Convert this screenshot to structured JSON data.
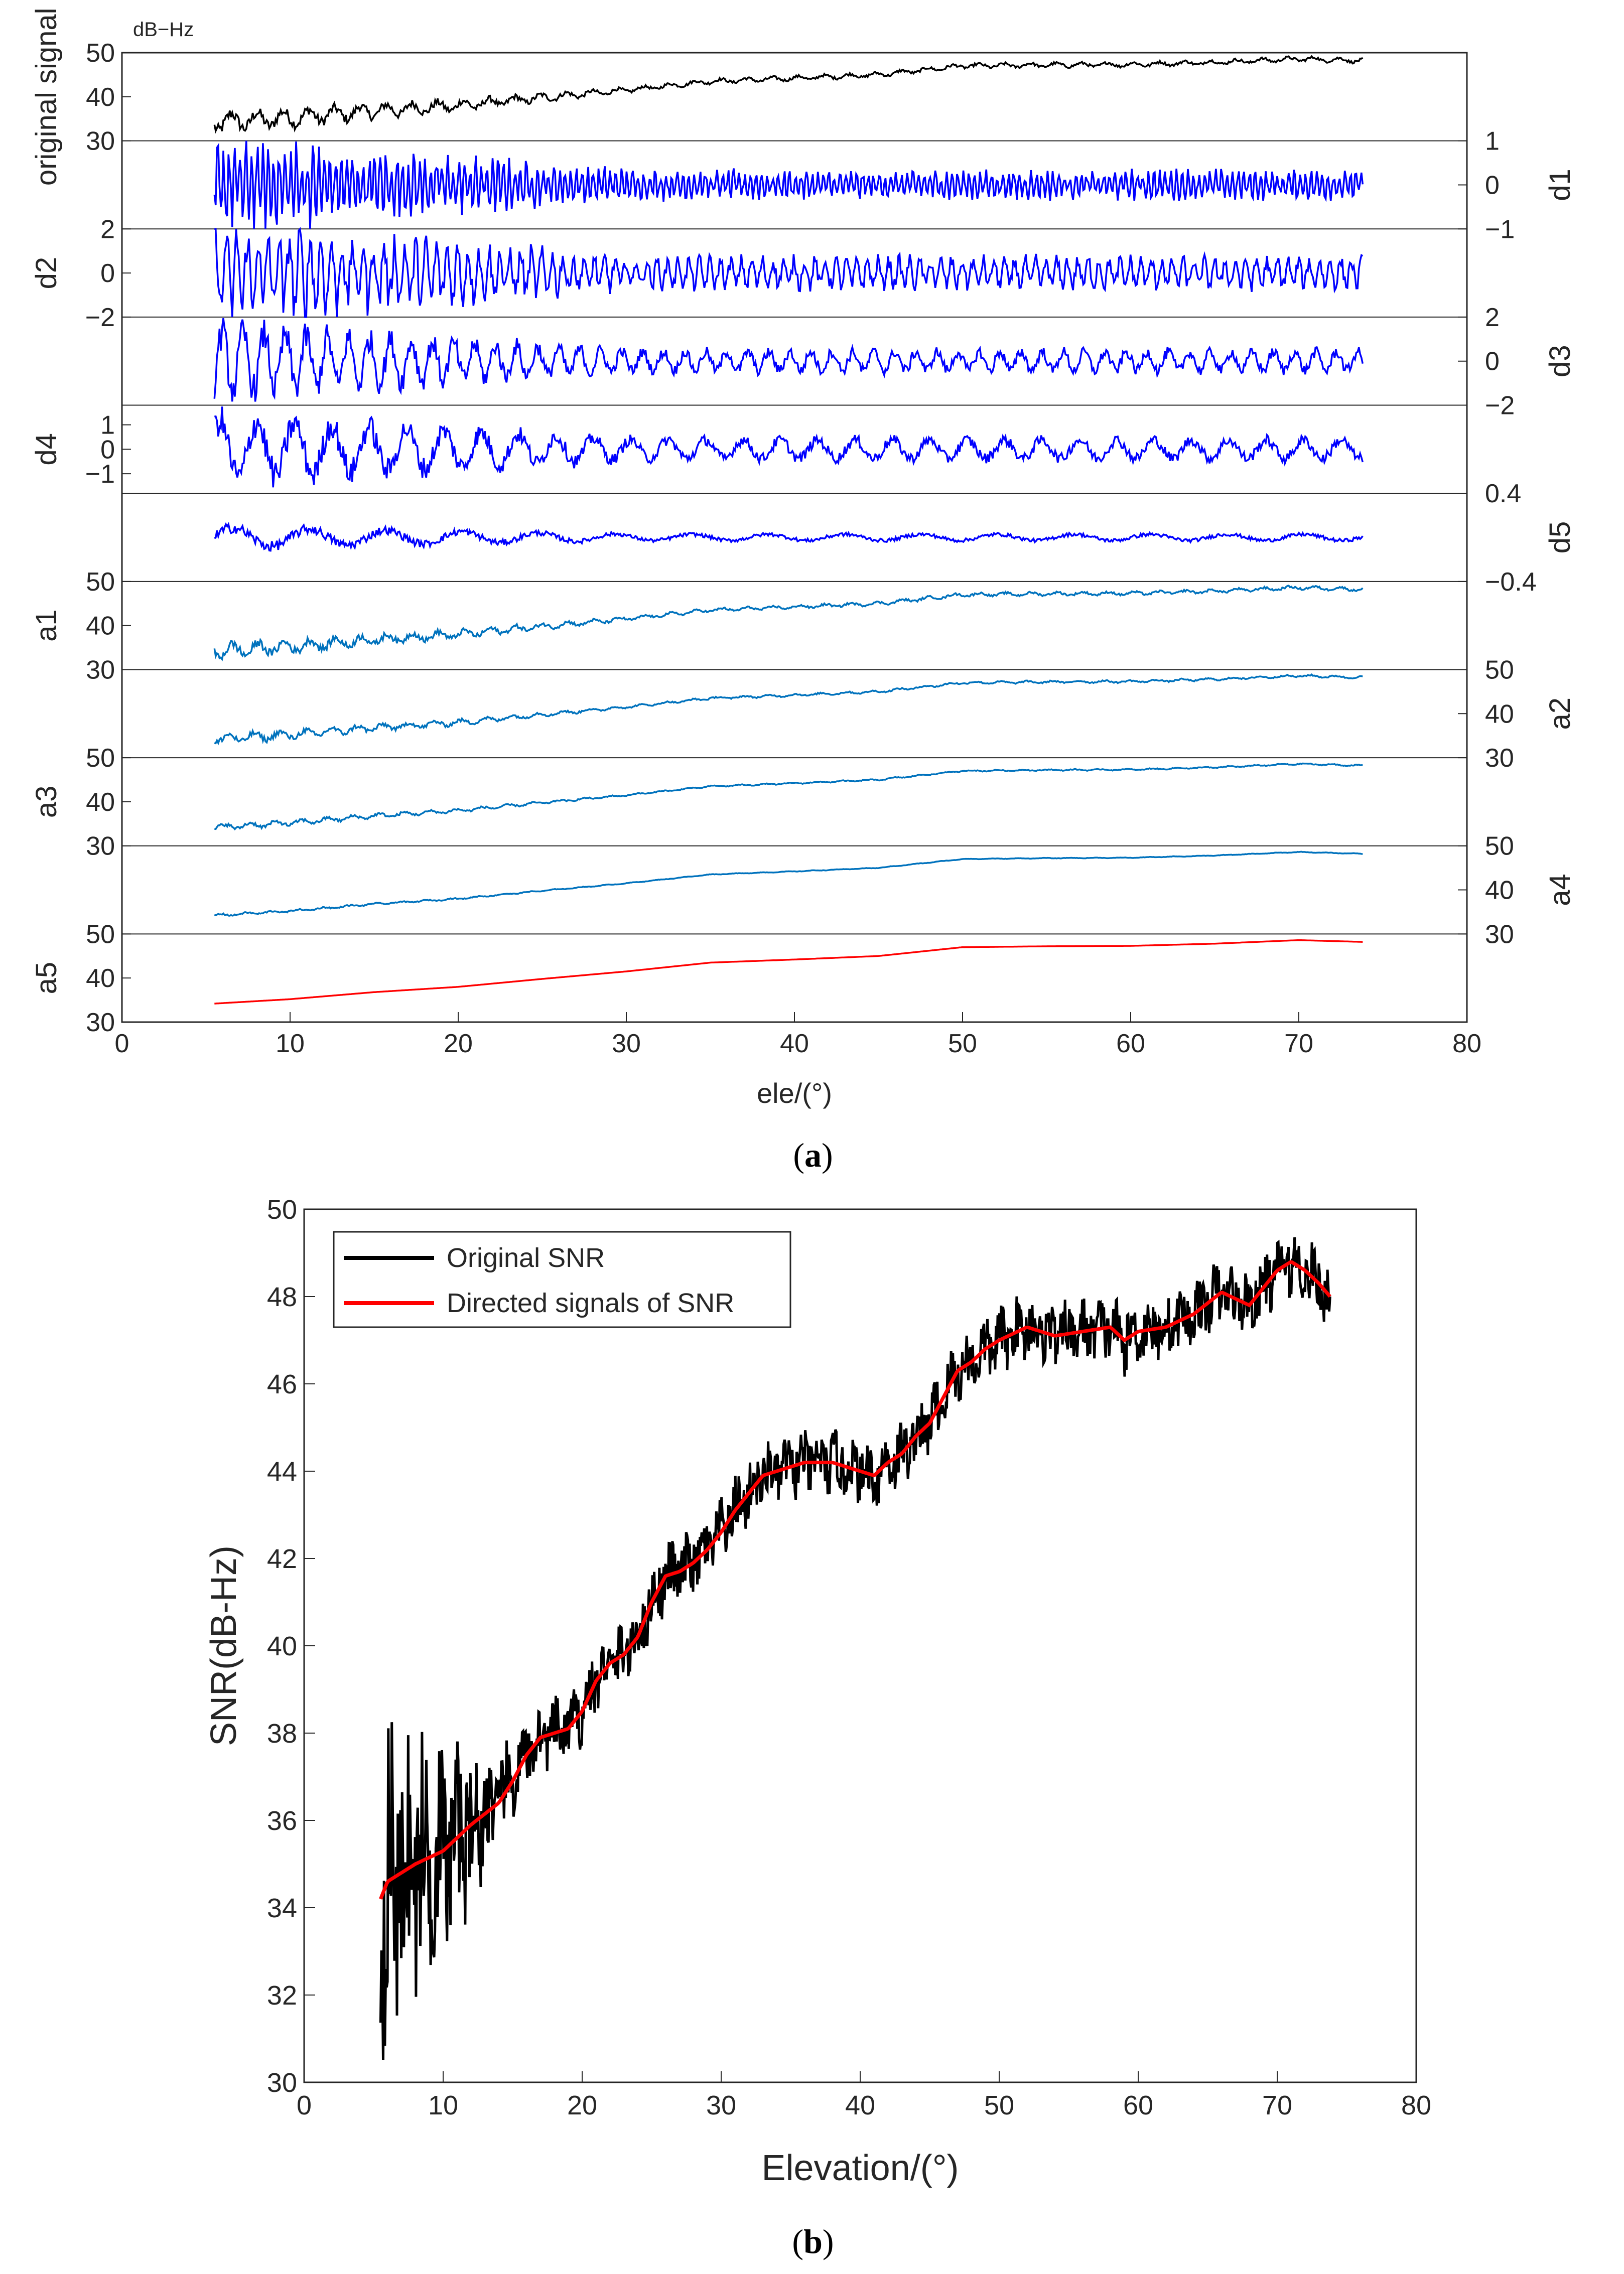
{
  "chart_data": [
    {
      "type": "line",
      "panel_label": "a",
      "unit_label": "dB−Hz",
      "xlabel": "ele/(°)",
      "xlim": [
        0,
        80
      ],
      "xticks": [
        "0",
        "10",
        "20",
        "30",
        "40",
        "50",
        "60",
        "70",
        "80"
      ],
      "x_start": 5.5,
      "x_end": 73.8,
      "series": [
        {
          "name": "original signal",
          "side": "left",
          "color": "#000000",
          "ylim": [
            30,
            50
          ],
          "ticks": [
            {
              "v": 30,
              "t": "30"
            },
            {
              "v": 40,
              "t": "40"
            },
            {
              "v": 50,
              "t": "50"
            }
          ],
          "kind": "trend",
          "noise": 2.0
        },
        {
          "name": "d1",
          "side": "right",
          "color": "#0000ff",
          "ylim": [
            -1,
            1
          ],
          "ticks": [
            {
              "v": -1,
              "t": "−1"
            },
            {
              "v": 0,
              "t": "0"
            },
            {
              "v": 1,
              "t": "1"
            }
          ],
          "kind": "detail",
          "amp": 0.35,
          "freq": 3.0
        },
        {
          "name": "d2",
          "side": "left",
          "color": "#0000ff",
          "ylim": [
            -2,
            2
          ],
          "ticks": [
            {
              "v": -2,
              "t": "−2"
            },
            {
              "v": 0,
              "t": "0"
            },
            {
              "v": 2,
              "t": "2"
            }
          ],
          "kind": "detail",
          "amp": 0.4,
          "freq": 1.6
        },
        {
          "name": "d3",
          "side": "right",
          "color": "#0000ff",
          "ylim": [
            -2,
            2
          ],
          "ticks": [
            {
              "v": -2,
              "t": "−2"
            },
            {
              "v": 0,
              "t": "0"
            },
            {
              "v": 2,
              "t": "2"
            }
          ],
          "kind": "detail",
          "amp": 0.3,
          "freq": 0.8
        },
        {
          "name": "d4",
          "side": "left",
          "color": "#0000ff",
          "ylim": [
            -1.8,
            1.8
          ],
          "ticks": [
            {
              "v": -1,
              "t": "−1"
            },
            {
              "v": 0,
              "t": "0"
            },
            {
              "v": 1,
              "t": "1"
            }
          ],
          "kind": "detail",
          "amp": 0.3,
          "freq": 0.45
        },
        {
          "name": "d5",
          "side": "right",
          "color": "#0000ff",
          "ylim": [
            -0.4,
            0.4
          ],
          "ticks": [
            {
              "v": -0.4,
              "t": "−0.4"
            },
            {
              "v": 0.4,
              "t": "0.4"
            }
          ],
          "kind": "detail",
          "amp": 0.1,
          "freq": 0.22
        },
        {
          "name": "a1",
          "side": "left",
          "color": "#0072bd",
          "ylim": [
            30,
            50
          ],
          "ticks": [
            {
              "v": 30,
              "t": "30"
            },
            {
              "v": 40,
              "t": "40"
            },
            {
              "v": 50,
              "t": "50"
            }
          ],
          "kind": "trend",
          "noise": 1.5
        },
        {
          "name": "a2",
          "side": "right",
          "color": "#0072bd",
          "ylim": [
            30,
            50
          ],
          "ticks": [
            {
              "v": 30,
              "t": "30"
            },
            {
              "v": 40,
              "t": "40"
            },
            {
              "v": 50,
              "t": "50"
            }
          ],
          "kind": "trend",
          "noise": 1.0
        },
        {
          "name": "a3",
          "side": "left",
          "color": "#0072bd",
          "ylim": [
            30,
            50
          ],
          "ticks": [
            {
              "v": 30,
              "t": "30"
            },
            {
              "v": 40,
              "t": "40"
            },
            {
              "v": 50,
              "t": "50"
            }
          ],
          "kind": "trend",
          "noise": 0.6
        },
        {
          "name": "a4",
          "side": "right",
          "color": "#0072bd",
          "ylim": [
            30,
            50
          ],
          "ticks": [
            {
              "v": 30,
              "t": "30"
            },
            {
              "v": 40,
              "t": "40"
            },
            {
              "v": 50,
              "t": "50"
            }
          ],
          "kind": "trend",
          "noise": 0.25
        },
        {
          "name": "a5",
          "side": "left",
          "color": "#ff0000",
          "ylim": [
            30,
            50
          ],
          "ticks": [
            {
              "v": 30,
              "t": "30"
            },
            {
              "v": 40,
              "t": "40"
            },
            {
              "v": 50,
              "t": "50"
            }
          ],
          "kind": "trend",
          "noise": 0.0
        }
      ],
      "trend_points": {
        "x": [
          5.5,
          10,
          15,
          20,
          25,
          30,
          35,
          40,
          45,
          50,
          55,
          60,
          65,
          70,
          73.8
        ],
        "y": [
          34.2,
          35.2,
          36.8,
          38.0,
          39.8,
          41.5,
          43.5,
          44.2,
          45.0,
          47.0,
          47.2,
          47.3,
          47.8,
          48.6,
          48.2
        ]
      }
    },
    {
      "type": "line",
      "panel_label": "b",
      "xlabel": "Elevation/(°)",
      "ylabel": "SNR(dB-Hz)",
      "xlim": [
        0,
        80
      ],
      "ylim": [
        30,
        50
      ],
      "xticks": [
        "0",
        "10",
        "20",
        "30",
        "40",
        "50",
        "60",
        "70",
        "80"
      ],
      "yticks": [
        "30",
        "32",
        "34",
        "36",
        "38",
        "40",
        "42",
        "44",
        "46",
        "48",
        "50"
      ],
      "legend_position": "top-left",
      "series": [
        {
          "name": "Original SNR",
          "color": "#000000",
          "noise": 2.2
        },
        {
          "name": "Directed signals of SNR",
          "color": "#ff0000",
          "noise": 0.0
        }
      ],
      "trend_points": {
        "x": [
          5.5,
          6,
          7,
          8,
          10,
          12,
          14,
          15,
          16,
          17,
          18,
          19,
          20,
          21,
          22,
          23,
          24,
          25,
          26,
          27,
          28,
          29,
          30,
          31,
          32,
          33,
          34,
          35,
          36,
          37,
          38,
          39,
          40,
          41,
          42,
          43,
          44,
          45,
          46,
          47,
          48,
          49,
          50,
          52,
          54,
          56,
          58,
          59,
          60,
          62,
          64,
          66,
          68,
          69,
          70,
          71,
          72,
          73,
          73.8
        ],
        "y": [
          34.2,
          34.6,
          34.8,
          35.0,
          35.3,
          35.9,
          36.4,
          36.9,
          37.5,
          37.9,
          38.0,
          38.1,
          38.5,
          39.2,
          39.6,
          39.8,
          40.2,
          41.0,
          41.6,
          41.7,
          41.9,
          42.2,
          42.6,
          43.1,
          43.5,
          43.9,
          44.0,
          44.1,
          44.2,
          44.2,
          44.2,
          44.1,
          44.0,
          43.9,
          44.2,
          44.4,
          44.8,
          45.1,
          45.7,
          46.3,
          46.5,
          46.8,
          47.0,
          47.3,
          47.1,
          47.2,
          47.3,
          47.0,
          47.2,
          47.3,
          47.6,
          48.1,
          47.8,
          48.2,
          48.6,
          48.8,
          48.6,
          48.3,
          48.0
        ]
      }
    }
  ]
}
